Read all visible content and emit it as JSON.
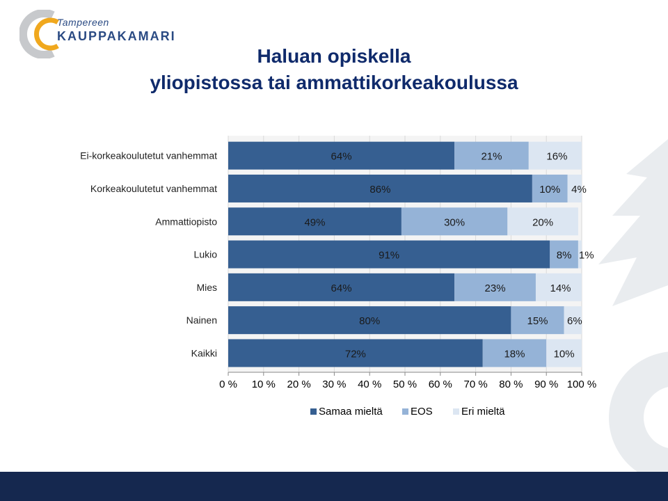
{
  "logo": {
    "line1": "Tampereen",
    "line2": "KAUPPAKAMARI"
  },
  "title": {
    "line1": "Haluan opiskella",
    "line2": "yliopistossa tai ammattikorkeakoulussa"
  },
  "colors": {
    "samaa": "#365f91",
    "eos": "#95b3d7",
    "eri": "#dce6f2",
    "title": "#0f2a6b",
    "bottom_bar": "#15284f"
  },
  "chart_data": {
    "type": "bar",
    "orientation": "horizontal",
    "stacked": true,
    "percent": true,
    "title": "",
    "xlabel": "",
    "ylabel": "",
    "xlim": [
      0,
      100
    ],
    "x_ticks": [
      "0 %",
      "10 %",
      "20 %",
      "30 %",
      "40 %",
      "50 %",
      "60 %",
      "70 %",
      "80 %",
      "90 %",
      "100 %"
    ],
    "categories": [
      "Ei-korkeakoulutetut vanhemmat",
      "Korkeakoulutetut vanhemmat",
      "Ammattiopisto",
      "Lukio",
      "Mies",
      "Nainen",
      "Kaikki"
    ],
    "series": [
      {
        "name": "Samaa mieltä",
        "values": [
          64,
          86,
          49,
          91,
          64,
          80,
          72
        ],
        "labels": [
          "64%",
          "86%",
          "49%",
          "91%",
          "64%",
          "80%",
          "72%"
        ]
      },
      {
        "name": "EOS",
        "values": [
          21,
          10,
          30,
          8,
          23,
          15,
          18
        ],
        "labels": [
          "21%",
          "10%",
          "30%",
          "8%",
          "23%",
          "15%",
          "18%"
        ]
      },
      {
        "name": "Eri mieltä",
        "values": [
          16,
          4,
          20,
          1,
          14,
          6,
          10
        ],
        "labels": [
          "16%",
          "4%",
          "20%",
          "1%",
          "14%",
          "6%",
          "10%"
        ]
      }
    ],
    "legend_position": "bottom",
    "grid": true
  }
}
